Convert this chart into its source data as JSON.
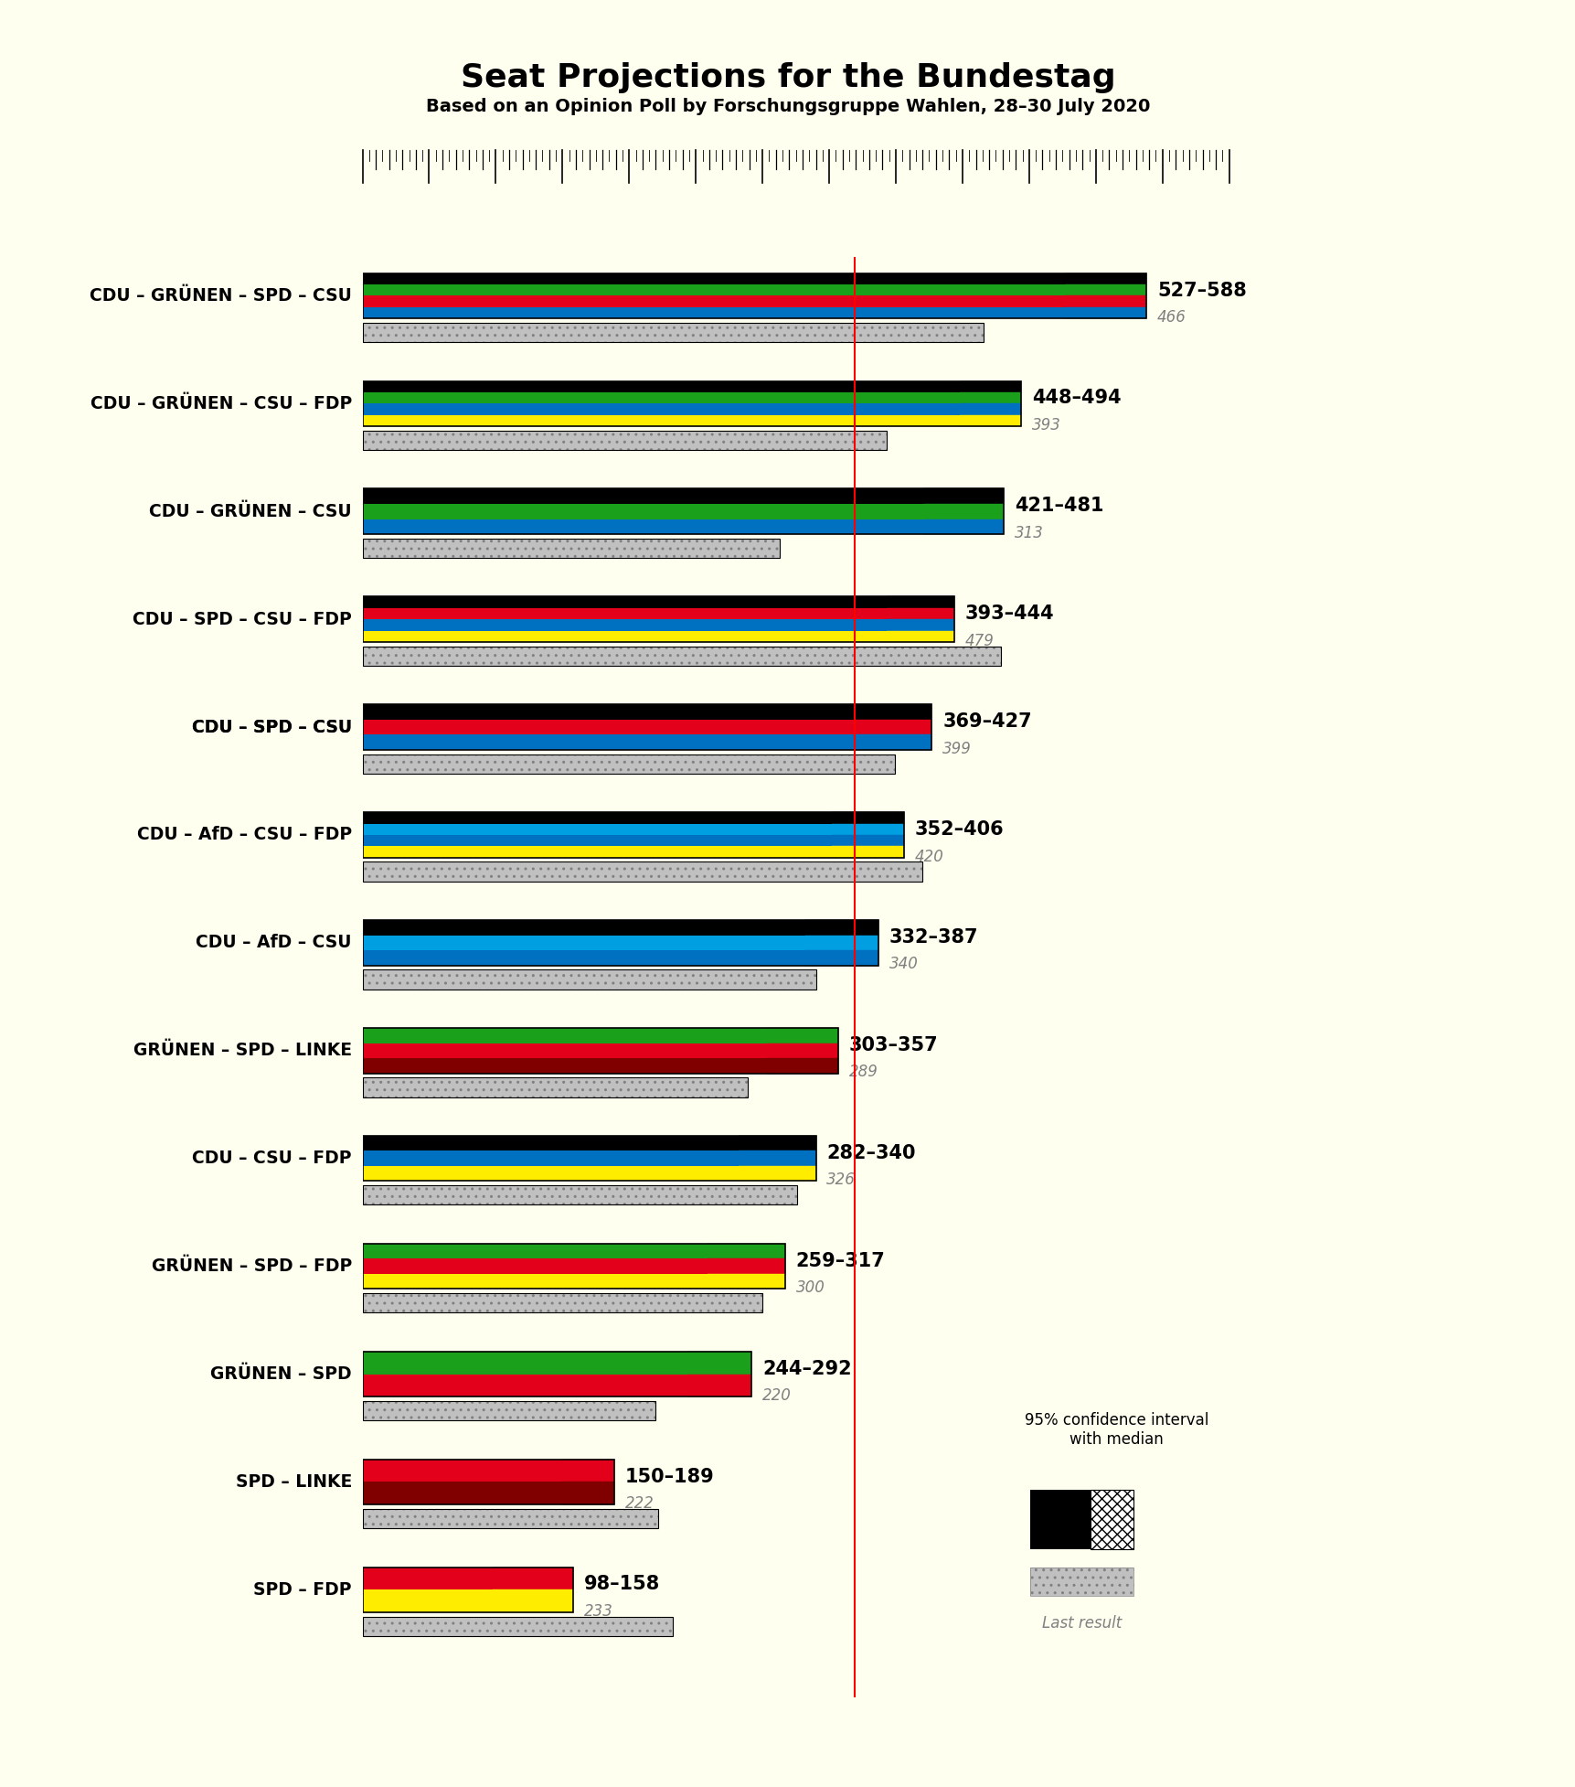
{
  "title": "Seat Projections for the Bundestag",
  "subtitle": "Based on an Opinion Poll by Forschungsgruppe Wahlen, 28–30 July 2020",
  "background_color": "#fffff0",
  "majority_line": 369,
  "x_max": 650,
  "coalitions": [
    {
      "name": "CDU – GRÜNEN – SPD – CSU",
      "underline": false,
      "ci_low": 527,
      "ci_high": 588,
      "last_result": 466,
      "colors": [
        "#000000",
        "#1aa01a",
        "#e2001a",
        "#0070c0"
      ]
    },
    {
      "name": "CDU – GRÜNEN – CSU – FDP",
      "underline": false,
      "ci_low": 448,
      "ci_high": 494,
      "last_result": 393,
      "colors": [
        "#000000",
        "#1aa01a",
        "#0070c0",
        "#ffed00"
      ]
    },
    {
      "name": "CDU – GRÜNEN – CSU",
      "underline": false,
      "ci_low": 421,
      "ci_high": 481,
      "last_result": 313,
      "colors": [
        "#000000",
        "#1aa01a",
        "#0070c0"
      ]
    },
    {
      "name": "CDU – SPD – CSU – FDP",
      "underline": false,
      "ci_low": 393,
      "ci_high": 444,
      "last_result": 479,
      "colors": [
        "#000000",
        "#e2001a",
        "#0070c0",
        "#ffed00"
      ]
    },
    {
      "name": "CDU – SPD – CSU",
      "underline": true,
      "ci_low": 369,
      "ci_high": 427,
      "last_result": 399,
      "colors": [
        "#000000",
        "#e2001a",
        "#0070c0"
      ]
    },
    {
      "name": "CDU – AfD – CSU – FDP",
      "underline": false,
      "ci_low": 352,
      "ci_high": 406,
      "last_result": 420,
      "colors": [
        "#000000",
        "#009fe1",
        "#0070c0",
        "#ffed00"
      ]
    },
    {
      "name": "CDU – AfD – CSU",
      "underline": false,
      "ci_low": 332,
      "ci_high": 387,
      "last_result": 340,
      "colors": [
        "#000000",
        "#009fe1",
        "#0070c0"
      ]
    },
    {
      "name": "GRÜNEN – SPD – LINKE",
      "underline": false,
      "ci_low": 303,
      "ci_high": 357,
      "last_result": 289,
      "colors": [
        "#1aa01a",
        "#e2001a",
        "#800000"
      ]
    },
    {
      "name": "CDU – CSU – FDP",
      "underline": false,
      "ci_low": 282,
      "ci_high": 340,
      "last_result": 326,
      "colors": [
        "#000000",
        "#0070c0",
        "#ffed00"
      ]
    },
    {
      "name": "GRÜNEN – SPD – FDP",
      "underline": false,
      "ci_low": 259,
      "ci_high": 317,
      "last_result": 300,
      "colors": [
        "#1aa01a",
        "#e2001a",
        "#ffed00"
      ]
    },
    {
      "name": "GRÜNEN – SPD",
      "underline": false,
      "ci_low": 244,
      "ci_high": 292,
      "last_result": 220,
      "colors": [
        "#1aa01a",
        "#e2001a"
      ]
    },
    {
      "name": "SPD – LINKE",
      "underline": false,
      "ci_low": 150,
      "ci_high": 189,
      "last_result": 222,
      "colors": [
        "#e2001a",
        "#800000"
      ]
    },
    {
      "name": "SPD – FDP",
      "underline": false,
      "ci_low": 98,
      "ci_high": 158,
      "last_result": 233,
      "colors": [
        "#e2001a",
        "#ffed00"
      ]
    }
  ]
}
